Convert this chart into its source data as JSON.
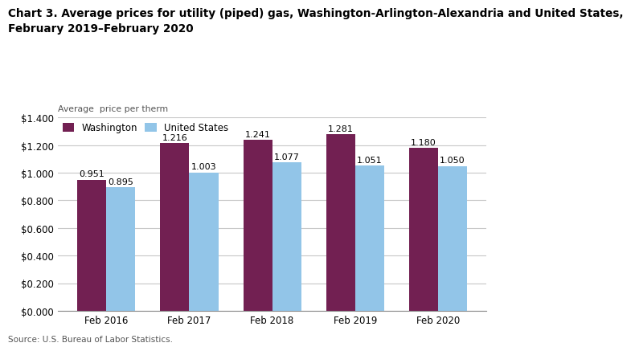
{
  "title_line1": "Chart 3. Average prices for utility (piped) gas, Washington-Arlington-Alexandria and United States,",
  "title_line2": "February 2019–February 2020",
  "ylabel": "Average  price per therm",
  "source": "Source: U.S. Bureau of Labor Statistics.",
  "categories": [
    "Feb 2016",
    "Feb 2017",
    "Feb 2018",
    "Feb 2019",
    "Feb 2020"
  ],
  "washington": [
    0.951,
    1.216,
    1.241,
    1.281,
    1.18
  ],
  "us": [
    0.895,
    1.003,
    1.077,
    1.051,
    1.05
  ],
  "washington_color": "#722052",
  "us_color": "#92C5E8",
  "ylim": [
    0,
    1.4
  ],
  "yticks": [
    0.0,
    0.2,
    0.4,
    0.6,
    0.8,
    1.0,
    1.2,
    1.4
  ],
  "legend_washington": "Washington",
  "legend_us": "United States",
  "bar_width": 0.35,
  "background_color": "#ffffff",
  "plot_bg_color": "#ffffff",
  "grid_color": "#c8c8c8",
  "title_fontsize": 9.8,
  "ylabel_fontsize": 7.8,
  "tick_fontsize": 8.5,
  "annotation_fontsize": 8.0,
  "legend_fontsize": 8.5,
  "source_fontsize": 7.5
}
